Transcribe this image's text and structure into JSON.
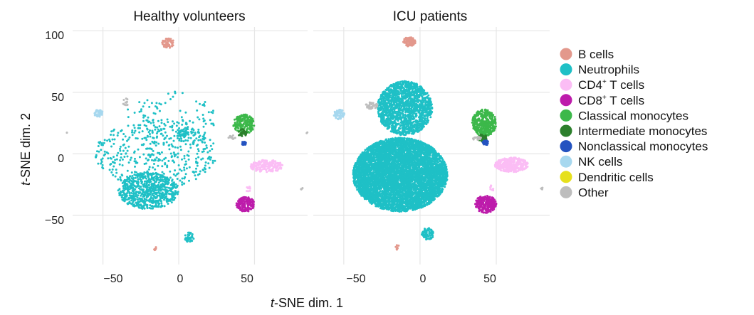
{
  "chart_data": {
    "type": "scatter",
    "panels": [
      {
        "title": "Healthy volunteers",
        "key": "healthy"
      },
      {
        "title": "ICU patients",
        "key": "icu"
      }
    ],
    "xlabel_italic": "t",
    "xlabel_rest": "-SNE dim. 1",
    "ylabel_italic": "t",
    "ylabel_rest": "-SNE dim. 2",
    "xlim": [
      -70,
      85
    ],
    "ylim": [
      -90,
      103
    ],
    "xticks": [
      -50,
      0,
      50
    ],
    "xtick_labels": [
      "−50",
      "0",
      "50"
    ],
    "yticks": [
      100,
      50,
      0,
      -50
    ],
    "ytick_labels": [
      "100",
      "50",
      "0",
      "−50"
    ],
    "grid": true,
    "legend_position": "right",
    "series": [
      {
        "name": "B cells",
        "base": "B cells",
        "color": "#e3988c"
      },
      {
        "name": "Neutrophils",
        "base": "Neutrophils",
        "color": "#1fc0c6"
      },
      {
        "name": "CD4+ T cells",
        "base": "CD4",
        "sup": "+",
        "rest": " T cells",
        "color": "#fbbdf5"
      },
      {
        "name": "CD8+ T cells",
        "base": "CD8",
        "sup": "+",
        "rest": " T cells",
        "color": "#bd1cab"
      },
      {
        "name": "Classical monocytes",
        "base": "Classical monocytes",
        "color": "#3cb84a"
      },
      {
        "name": "Intermediate monocytes",
        "base": "Intermediate monocytes",
        "color": "#2c7f2c"
      },
      {
        "name": "Nonclassical monocytes",
        "base": "Nonclassical monocytes",
        "color": "#2453c0"
      },
      {
        "name": "NK cells",
        "base": "NK cells",
        "color": "#a7d8ef"
      },
      {
        "name": "Dendritic cells",
        "base": "Dendritic cells",
        "color": "#e6e01c"
      },
      {
        "name": "Other",
        "base": "Other",
        "color": "#bdbdbd"
      }
    ],
    "clusters": {
      "healthy": [
        {
          "series": "B cells",
          "cx": -7,
          "cy": 90,
          "rx": 4,
          "ry": 4,
          "n": 60
        },
        {
          "series": "B cells",
          "cx": -15,
          "cy": -77,
          "rx": 1.5,
          "ry": 1.5,
          "n": 8
        },
        {
          "series": "Neutrophils",
          "cx": -20,
          "cy": -30,
          "rx": 20,
          "ry": 15,
          "n": 700
        },
        {
          "series": "Neutrophils",
          "cx": -15,
          "cy": 0,
          "rx": 40,
          "ry": 28,
          "n": 450
        },
        {
          "series": "Neutrophils",
          "cx": -5,
          "cy": 30,
          "rx": 30,
          "ry": 22,
          "n": 110
        },
        {
          "series": "Neutrophils",
          "cx": 2,
          "cy": 16,
          "rx": 3,
          "ry": 3,
          "n": 30
        },
        {
          "series": "Neutrophils",
          "cx": 7,
          "cy": -68,
          "rx": 3,
          "ry": 4,
          "n": 40
        },
        {
          "series": "CD4+ T cells",
          "cx": 58,
          "cy": -10,
          "rx": 11,
          "ry": 5,
          "n": 170
        },
        {
          "series": "CD4+ T cells",
          "cx": 46,
          "cy": -29,
          "rx": 1.5,
          "ry": 2.5,
          "n": 10
        },
        {
          "series": "CD8+ T cells",
          "cx": 44,
          "cy": -41,
          "rx": 6,
          "ry": 6,
          "n": 150
        },
        {
          "series": "Classical monocytes",
          "cx": 43,
          "cy": 24,
          "rx": 7,
          "ry": 8,
          "n": 200
        },
        {
          "series": "Intermediate monocytes",
          "cx": 42,
          "cy": 17,
          "rx": 3,
          "ry": 3,
          "n": 30
        },
        {
          "series": "Nonclassical monocytes",
          "cx": 43,
          "cy": 9,
          "rx": 1.5,
          "ry": 2,
          "n": 25
        },
        {
          "series": "NK cells",
          "cx": -53,
          "cy": 33,
          "rx": 3,
          "ry": 3,
          "n": 40
        },
        {
          "series": "Other",
          "cx": -35,
          "cy": 42,
          "rx": 2,
          "ry": 3,
          "n": 14
        },
        {
          "series": "Other",
          "cx": 35,
          "cy": 13,
          "rx": 3,
          "ry": 2,
          "n": 14
        },
        {
          "series": "Other",
          "cx": 81,
          "cy": -28,
          "rx": 1,
          "ry": 1,
          "n": 4
        },
        {
          "series": "Other",
          "cx": -74,
          "cy": 17,
          "rx": 0.6,
          "ry": 0.6,
          "n": 2
        }
      ],
      "icu": [
        {
          "series": "B cells",
          "cx": -7,
          "cy": 91,
          "rx": 4,
          "ry": 4,
          "n": 110
        },
        {
          "series": "B cells",
          "cx": -15,
          "cy": -76,
          "rx": 1.5,
          "ry": 2,
          "n": 8
        },
        {
          "series": "Neutrophils",
          "cx": -13,
          "cy": -17,
          "rx": 31,
          "ry": 30,
          "n": 7000
        },
        {
          "series": "Neutrophils",
          "cx": -10,
          "cy": 37,
          "rx": 18,
          "ry": 22,
          "n": 1600
        },
        {
          "series": "Neutrophils",
          "cx": 5,
          "cy": -65,
          "rx": 4,
          "ry": 5,
          "n": 80
        },
        {
          "series": "CD4+ T cells",
          "cx": 60,
          "cy": -9,
          "rx": 11,
          "ry": 6,
          "n": 380
        },
        {
          "series": "CD4+ T cells",
          "cx": 47,
          "cy": -28,
          "rx": 1.5,
          "ry": 2.5,
          "n": 10
        },
        {
          "series": "CD8+ T cells",
          "cx": 43,
          "cy": -41,
          "rx": 7,
          "ry": 7,
          "n": 260
        },
        {
          "series": "Classical monocytes",
          "cx": 42,
          "cy": 25,
          "rx": 8,
          "ry": 11,
          "n": 400
        },
        {
          "series": "Intermediate monocytes",
          "cx": 41,
          "cy": 13,
          "rx": 3,
          "ry": 3,
          "n": 40
        },
        {
          "series": "Nonclassical monocytes",
          "cx": 43,
          "cy": 9,
          "rx": 2,
          "ry": 2,
          "n": 30
        },
        {
          "series": "NK cells",
          "cx": -53,
          "cy": 32,
          "rx": 3.5,
          "ry": 4,
          "n": 70
        },
        {
          "series": "Other",
          "cx": -32,
          "cy": 39,
          "rx": 4,
          "ry": 3,
          "n": 40
        },
        {
          "series": "Other",
          "cx": 37,
          "cy": 13,
          "rx": 3,
          "ry": 2,
          "n": 14
        },
        {
          "series": "Other",
          "cx": 80,
          "cy": -28,
          "rx": 1,
          "ry": 1,
          "n": 4
        },
        {
          "series": "Other",
          "cx": -74,
          "cy": 17,
          "rx": 0.6,
          "ry": 0.6,
          "n": 2
        }
      ]
    }
  }
}
